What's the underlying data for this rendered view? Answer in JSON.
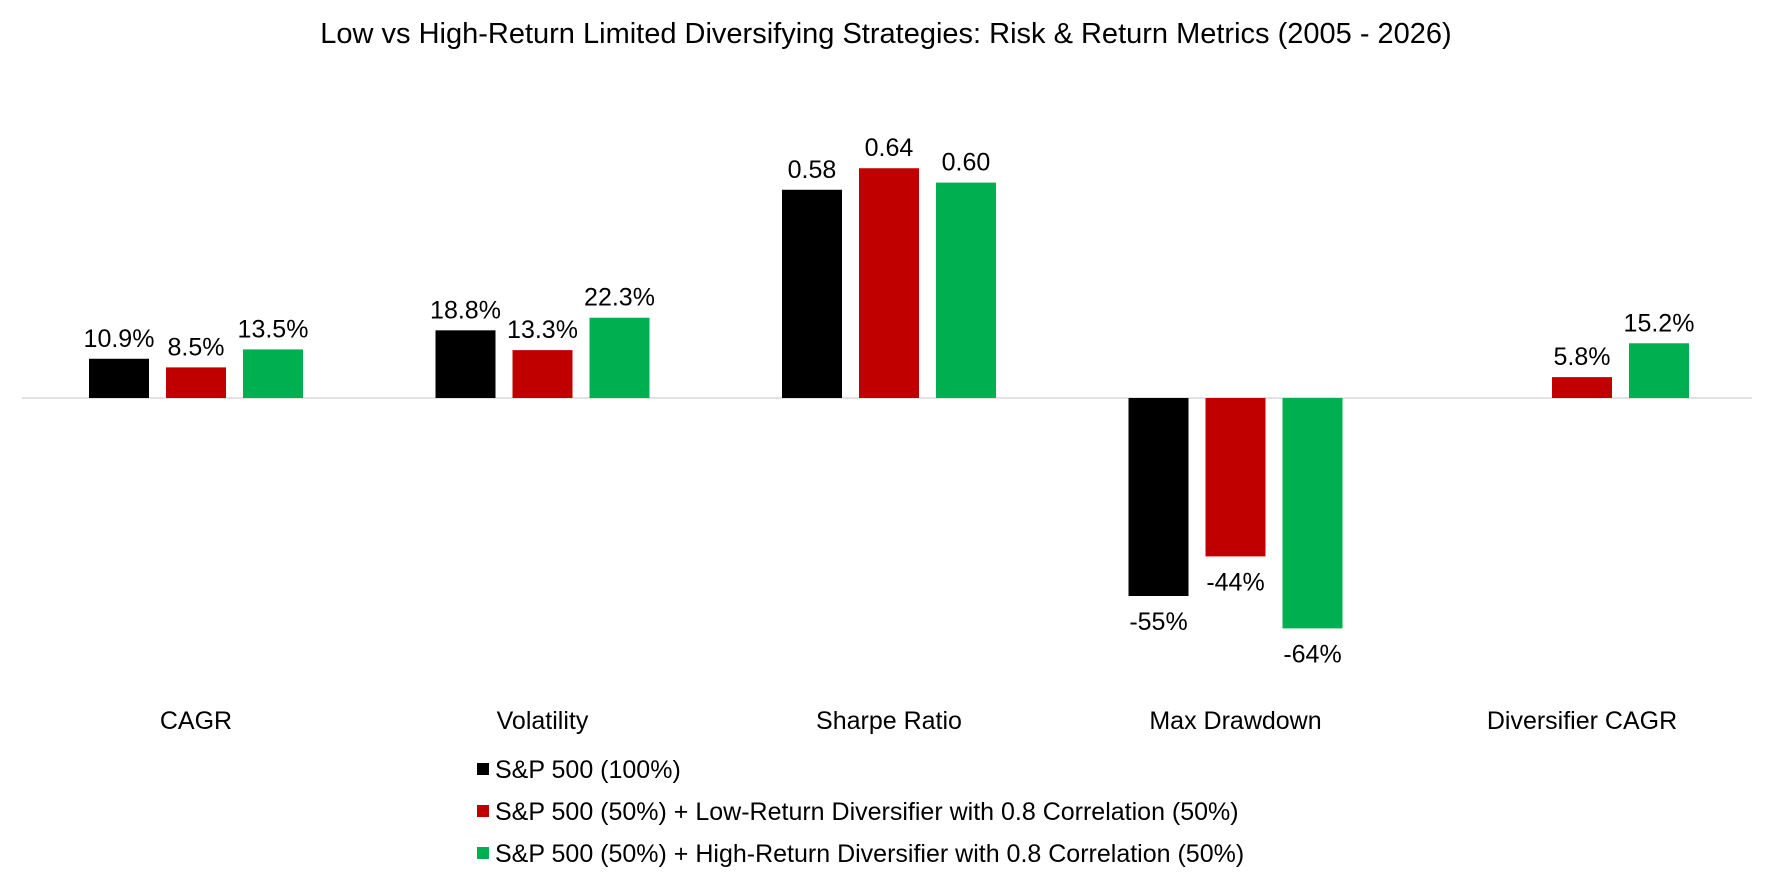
{
  "chart_data": {
    "type": "bar",
    "title": "Low vs High-Return Limited Diversifying Strategies: Risk & Return Metrics (2005 - 2026)",
    "xlabel": "",
    "ylabel": "",
    "categories": [
      "CAGR",
      "Volatility",
      "Sharpe Ratio",
      "Max Drawdown",
      "Diversifier CAGR"
    ],
    "series": [
      {
        "name": "S&P 500 (100%)",
        "color": "#000000",
        "values": [
          10.9,
          18.8,
          0.58,
          -55,
          null
        ],
        "labels": [
          "10.9%",
          "18.8%",
          "0.58",
          "-55%",
          ""
        ]
      },
      {
        "name": "S&P 500 (50%) + Low-Return Diversifier with 0.8 Correlation (50%)",
        "color": "#C00000",
        "values": [
          8.5,
          13.3,
          0.64,
          -44,
          5.8
        ],
        "labels": [
          "8.5%",
          "13.3%",
          "0.64",
          "-44%",
          "5.8%"
        ]
      },
      {
        "name": "S&P 500 (50%) + High-Return Diversifier with 0.8 Correlation (50%)",
        "color": "#00B050",
        "values": [
          13.5,
          22.3,
          0.6,
          -64,
          15.2
        ],
        "labels": [
          "13.5%",
          "22.3%",
          "0.60",
          "-64%",
          "15.2%"
        ]
      }
    ],
    "legend_position": "bottom",
    "grid": false,
    "axis_line_color": "#D9D9D9"
  }
}
